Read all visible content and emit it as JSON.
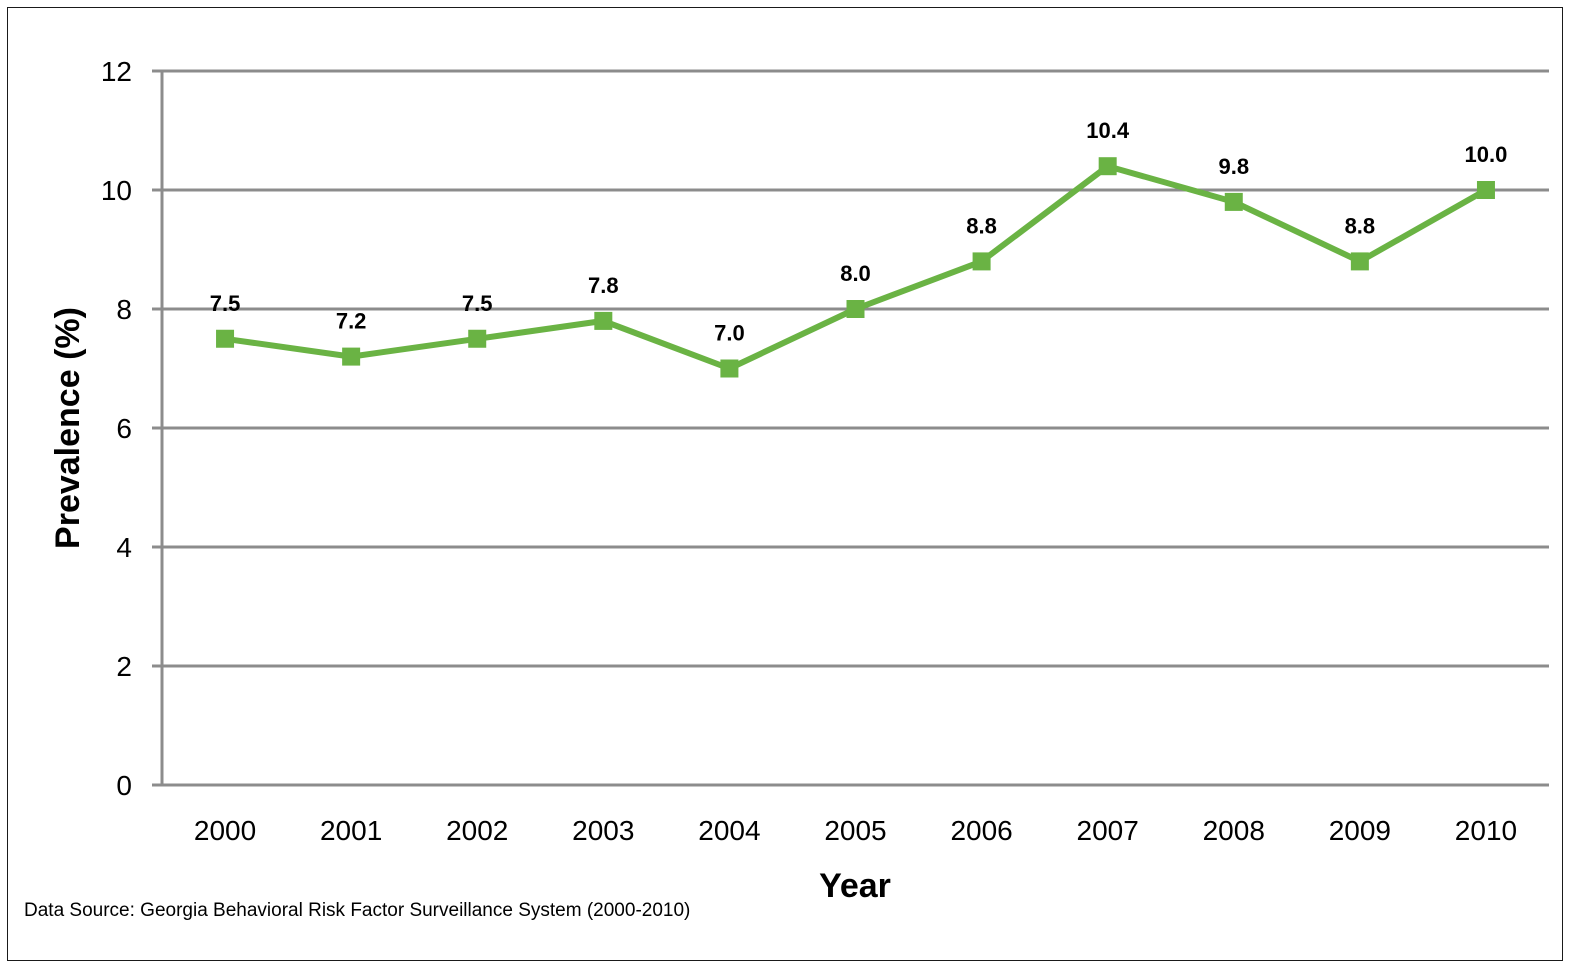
{
  "chart_data": {
    "type": "line",
    "title": "",
    "xlabel": "Year",
    "ylabel": "Prevalence (%)",
    "categories": [
      "2000",
      "2001",
      "2002",
      "2003",
      "2004",
      "2005",
      "2006",
      "2007",
      "2008",
      "2009",
      "2010"
    ],
    "series": [
      {
        "values": [
          7.5,
          7.2,
          7.5,
          7.8,
          7.0,
          8.0,
          8.8,
          10.4,
          9.8,
          8.8,
          10.0
        ],
        "labels": [
          "7.5",
          "7.2",
          "7.5",
          "7.8",
          "7.0",
          "8.0",
          "8.8",
          "10.4",
          "9.8",
          "8.8",
          "10.0"
        ],
        "color": "#6ab344",
        "marker": "square"
      }
    ],
    "ylim": [
      0,
      12
    ],
    "yticks": [
      0,
      2,
      4,
      6,
      8,
      10,
      12
    ],
    "ytick_labels": [
      "0",
      "2",
      "4",
      "6",
      "8",
      "10",
      "12"
    ],
    "grid": "horizontal",
    "gridColor": "#8c8c8c",
    "legend": "none"
  },
  "source_note": "Data Source: Georgia Behavioral Risk Factor Surveillance System (2000-2010)"
}
